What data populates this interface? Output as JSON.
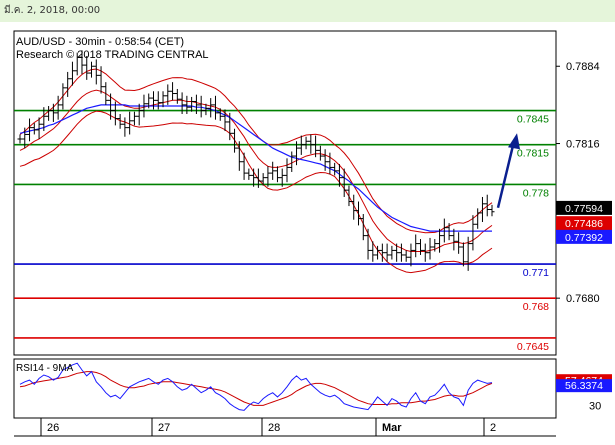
{
  "header": {
    "timestamp": "มี.ค. 2, 2018, 00:00"
  },
  "chart_data": {
    "type": "line",
    "title": "AUD/USD - 30min - 0:58:54 (CET)",
    "subtitle": "Research © 2018 TRADING CENTRAL",
    "price_axis": {
      "ticks": [
        "0.7884",
        "0.7816",
        "0.7680"
      ],
      "ylim": [
        0.763,
        0.7915
      ]
    },
    "x_axis": {
      "ticks": [
        "26",
        "27",
        "28",
        "Mar",
        "2"
      ]
    },
    "levels": [
      {
        "label": "0.7845",
        "value": 0.7845,
        "color": "#008000"
      },
      {
        "label": "0.7815",
        "value": 0.7815,
        "color": "#008000"
      },
      {
        "label": "0.778",
        "value": 0.778,
        "color": "#008000"
      },
      {
        "label": "0.771",
        "value": 0.771,
        "color": "#0000cc"
      },
      {
        "label": "0.768",
        "value": 0.768,
        "color": "#dd0000"
      },
      {
        "label": "0.7645",
        "value": 0.7645,
        "color": "#dd0000"
      }
    ],
    "price_badges": [
      {
        "label": "0.77594",
        "value": 0.77594,
        "bg": "#000000",
        "fg": "#ffffff"
      },
      {
        "label": "0.77486",
        "value": 0.77486,
        "bg": "#dd0000",
        "fg": "#ffffff"
      },
      {
        "label": "0.77392",
        "value": 0.77392,
        "bg": "#1a1aff",
        "fg": "#ffffff"
      }
    ],
    "close": [
      0.782,
      0.7824,
      0.783,
      0.7828,
      0.7833,
      0.784,
      0.7845,
      0.7843,
      0.785,
      0.7865,
      0.7873,
      0.788,
      0.7892,
      0.7885,
      0.7878,
      0.7884,
      0.7876,
      0.7866,
      0.7854,
      0.7845,
      0.7838,
      0.7833,
      0.783,
      0.7836,
      0.784,
      0.7845,
      0.7851,
      0.7856,
      0.7854,
      0.7852,
      0.7858,
      0.7862,
      0.786,
      0.7855,
      0.785,
      0.7848,
      0.7853,
      0.785,
      0.7845,
      0.7847,
      0.785,
      0.7843,
      0.784,
      0.7835,
      0.7825,
      0.7812,
      0.78,
      0.779,
      0.7788,
      0.7786,
      0.7783,
      0.7786,
      0.779,
      0.7792,
      0.7786,
      0.7788,
      0.7795,
      0.7805,
      0.7812,
      0.7815,
      0.7818,
      0.7815,
      0.781,
      0.7805,
      0.78,
      0.7795,
      0.7792,
      0.7786,
      0.7775,
      0.7765,
      0.7757,
      0.775,
      0.7735,
      0.7722,
      0.7718,
      0.7722,
      0.772,
      0.7718,
      0.7722,
      0.772,
      0.7718,
      0.7716,
      0.7722,
      0.7728,
      0.7722,
      0.772,
      0.7725,
      0.7728,
      0.7735,
      0.7742,
      0.7735,
      0.773,
      0.7725,
      0.7712,
      0.7728,
      0.7745,
      0.7755,
      0.7763,
      0.7758,
      0.7756
    ],
    "ma_red": [
      0.781,
      0.7812,
      0.7815,
      0.7818,
      0.782,
      0.7823,
      0.7826,
      0.7829,
      0.7833,
      0.7838,
      0.7843,
      0.7848,
      0.7853,
      0.7857,
      0.786,
      0.7862,
      0.7863,
      0.7862,
      0.786,
      0.7857,
      0.7854,
      0.7851,
      0.7849,
      0.7848,
      0.7847,
      0.7847,
      0.7848,
      0.7849,
      0.785,
      0.7851,
      0.7852,
      0.7853,
      0.7854,
      0.7854,
      0.7854,
      0.7853,
      0.7853,
      0.7852,
      0.7851,
      0.785,
      0.7849,
      0.7848,
      0.7846,
      0.7843,
      0.7839,
      0.7834,
      0.7828,
      0.7822,
      0.7815,
      0.7809,
      0.7803,
      0.7799,
      0.7796,
      0.7795,
      0.7795,
      0.7796,
      0.7797,
      0.7799,
      0.7801,
      0.7803,
      0.7805,
      0.7806,
      0.7807,
      0.7807,
      0.7806,
      0.7804,
      0.7801,
      0.7797,
      0.7792,
      0.7786,
      0.7779,
      0.7772,
      0.7764,
      0.7756,
      0.7748,
      0.7742,
      0.7737,
      0.7732,
      0.7729,
      0.7726,
      0.7724,
      0.7722,
      0.7721,
      0.7721,
      0.7721,
      0.7721,
      0.7722,
      0.7723,
      0.7725,
      0.7727,
      0.7728,
      0.7729,
      0.7729,
      0.7728,
      0.7729,
      0.7731,
      0.7734,
      0.7738,
      0.7741,
      0.7744
    ],
    "ma_blue": [
      0.7825,
      0.7826,
      0.7827,
      0.7828,
      0.7829,
      0.783,
      0.7832,
      0.7833,
      0.7835,
      0.7837,
      0.7839,
      0.7841,
      0.7843,
      0.7845,
      0.7847,
      0.7848,
      0.7849,
      0.785,
      0.785,
      0.785,
      0.785,
      0.785,
      0.785,
      0.7849,
      0.7849,
      0.7849,
      0.7849,
      0.7849,
      0.7849,
      0.7849,
      0.7849,
      0.7849,
      0.7849,
      0.7849,
      0.7849,
      0.7849,
      0.7849,
      0.7848,
      0.7848,
      0.7847,
      0.7846,
      0.7845,
      0.7843,
      0.7841,
      0.7839,
      0.7836,
      0.7833,
      0.783,
      0.7827,
      0.7824,
      0.7821,
      0.7818,
      0.7815,
      0.7812,
      0.781,
      0.7808,
      0.7806,
      0.7804,
      0.7803,
      0.7802,
      0.7801,
      0.78,
      0.7799,
      0.7798,
      0.7796,
      0.7794,
      0.7792,
      0.7789,
      0.7786,
      0.7783,
      0.7779,
      0.7776,
      0.7772,
      0.7768,
      0.7764,
      0.776,
      0.7757,
      0.7754,
      0.7751,
      0.7749,
      0.7747,
      0.7745,
      0.7743,
      0.7742,
      0.7741,
      0.774,
      0.7739,
      0.7739,
      0.7739,
      0.7739,
      0.7739,
      0.7739,
      0.7739,
      0.7739,
      0.7739,
      0.7739,
      0.7739,
      0.7739,
      0.7739,
      0.7739
    ],
    "rsi": {
      "label": "RSI14 - 9MA",
      "ylim": [
        15,
        85
      ],
      "ticks": [
        "30"
      ],
      "badges": [
        {
          "label": "57.4674",
          "value": 57.4674,
          "bg": "#dd0000",
          "fg": "#ffffff"
        },
        {
          "label": "56.3374",
          "value": 56.3374,
          "bg": "#1a1aff",
          "fg": "#ffffff"
        }
      ],
      "values": [
        55,
        58,
        60,
        55,
        62,
        66,
        64,
        60,
        63,
        72,
        75,
        78,
        80,
        72,
        65,
        70,
        58,
        52,
        45,
        40,
        42,
        38,
        45,
        52,
        55,
        58,
        60,
        62,
        58,
        55,
        60,
        62,
        58,
        52,
        48,
        50,
        55,
        50,
        45,
        48,
        52,
        45,
        42,
        38,
        32,
        28,
        25,
        24,
        30,
        34,
        32,
        38,
        42,
        45,
        40,
        45,
        52,
        60,
        65,
        60,
        62,
        55,
        50,
        45,
        42,
        40,
        42,
        38,
        32,
        30,
        28,
        27,
        26,
        25,
        32,
        40,
        35,
        30,
        38,
        35,
        30,
        28,
        38,
        45,
        35,
        32,
        40,
        42,
        48,
        55,
        45,
        40,
        38,
        30,
        48,
        56,
        60,
        58,
        56,
        57
      ],
      "ma": [
        52,
        53,
        55,
        57,
        58,
        59,
        60,
        61,
        62,
        63,
        64,
        66,
        68,
        69,
        70,
        70,
        69,
        67,
        64,
        60,
        57,
        54,
        52,
        51,
        51,
        52,
        53,
        55,
        56,
        57,
        58,
        58,
        58,
        57,
        56,
        55,
        54,
        53,
        52,
        51,
        50,
        49,
        48,
        46,
        43,
        40,
        37,
        34,
        32,
        30,
        30,
        30,
        32,
        34,
        36,
        38,
        40,
        43,
        47,
        50,
        53,
        55,
        56,
        56,
        55,
        53,
        51,
        48,
        45,
        42,
        39,
        36,
        34,
        32,
        31,
        31,
        31,
        31,
        32,
        32,
        33,
        33,
        33,
        34,
        35,
        35,
        36,
        37,
        39,
        41,
        42,
        42,
        41,
        41,
        43,
        45,
        48,
        51,
        54,
        56
      ]
    }
  }
}
